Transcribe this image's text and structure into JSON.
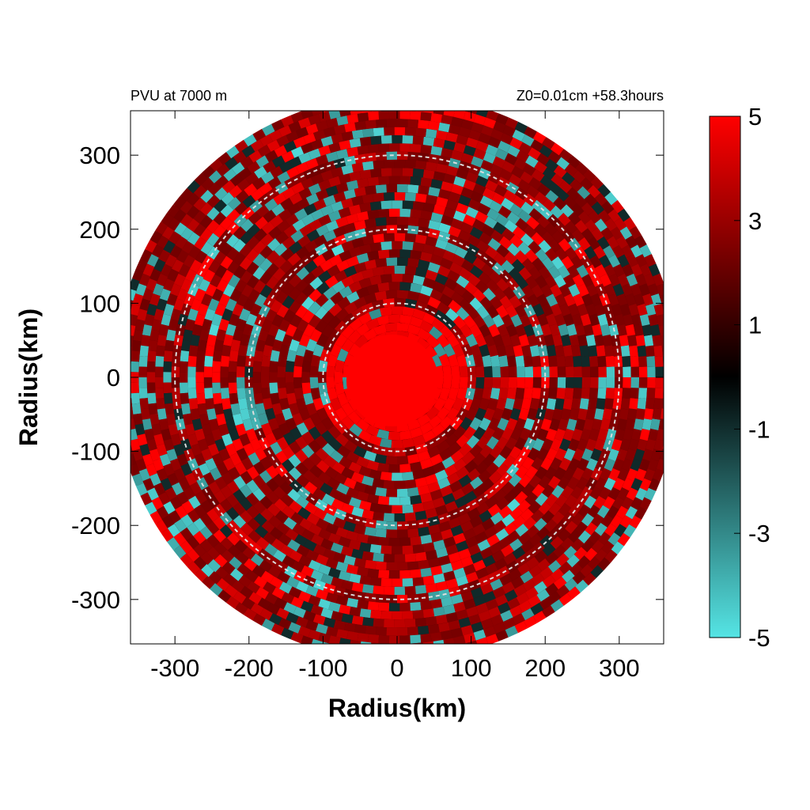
{
  "chart_data": {
    "type": "heatmap",
    "title_left": "PVU at  7000 m",
    "title_right": "Z0=0.01cm  +58.3hours",
    "xlabel": "Radius(km)",
    "ylabel": "Radius(km)",
    "xlim": [
      -360,
      360
    ],
    "ylim": [
      -360,
      360
    ],
    "x_ticks": [
      -300,
      -200,
      -100,
      0,
      100,
      200,
      300
    ],
    "y_ticks": [
      -300,
      -200,
      -100,
      0,
      100,
      200,
      300
    ],
    "x_tick_labels": [
      "-300",
      "-200",
      "-100",
      "0",
      "100",
      "200",
      "300"
    ],
    "y_tick_labels": [
      "-300",
      "-200",
      "-100",
      "0",
      "100",
      "200",
      "300"
    ],
    "domain_radius": 380,
    "reference_circles": [
      100,
      200,
      300
    ],
    "colorbar": {
      "range": [
        -5,
        5
      ],
      "ticks": [
        5,
        3,
        1,
        -1,
        -3,
        -5
      ],
      "tick_labels": [
        "5",
        "3",
        "1",
        "-1",
        "-3",
        "-5"
      ],
      "colors": {
        "min": "#55e5e5",
        "mid": "#000000",
        "max": "#ff0000"
      }
    },
    "grid": false,
    "legend": "colorbar-right"
  }
}
